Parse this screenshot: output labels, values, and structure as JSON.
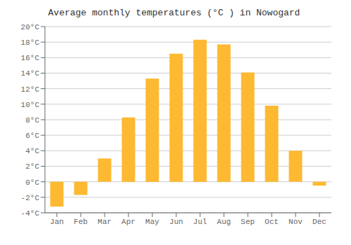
{
  "chart_data": {
    "type": "bar",
    "title": "Average monthly temperatures (°C ) in Nowogard",
    "categories": [
      "Jan",
      "Feb",
      "Mar",
      "Apr",
      "May",
      "Jun",
      "Jul",
      "Aug",
      "Sep",
      "Oct",
      "Nov",
      "Dec"
    ],
    "values": [
      -3.2,
      -1.7,
      3.0,
      8.3,
      13.3,
      16.5,
      18.3,
      17.7,
      14.1,
      9.8,
      4.0,
      -0.5
    ],
    "color": "#FDB931",
    "ylim": [
      -4,
      20
    ],
    "yticks": [
      {
        "value": -4,
        "label": "-4°C"
      },
      {
        "value": -2,
        "label": "-2°C"
      },
      {
        "value": 0,
        "label": "0°C"
      },
      {
        "value": 2,
        "label": "2°C"
      },
      {
        "value": 4,
        "label": "4°C"
      },
      {
        "value": 6,
        "label": "6°C"
      },
      {
        "value": 8,
        "label": "8°C"
      },
      {
        "value": 10,
        "label": "10°C"
      },
      {
        "value": 12,
        "label": "12°C"
      },
      {
        "value": 14,
        "label": "14°C"
      },
      {
        "value": 16,
        "label": "16°C"
      },
      {
        "value": 18,
        "label": "18°C"
      },
      {
        "value": 20,
        "label": "20°C"
      }
    ],
    "grid": true
  }
}
